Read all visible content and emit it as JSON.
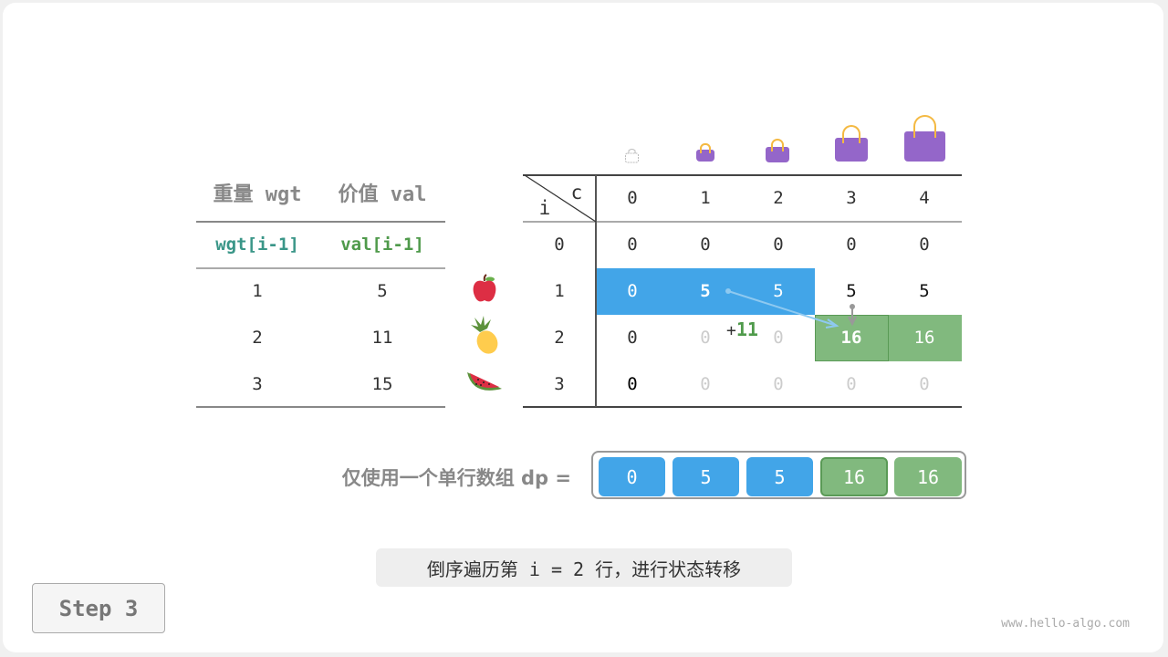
{
  "left_table": {
    "headers": [
      "重量 wgt",
      "价值 val"
    ],
    "subheaders": [
      "wgt[i-1]",
      "val[i-1]"
    ],
    "rows": [
      [
        "1",
        "5"
      ],
      [
        "2",
        "11"
      ],
      [
        "3",
        "15"
      ]
    ],
    "items": [
      "apple-icon",
      "pineapple-icon",
      "watermelon-icon"
    ]
  },
  "dp_table": {
    "corner_i": "i",
    "corner_c": "c",
    "cols": [
      "0",
      "1",
      "2",
      "3",
      "4"
    ],
    "row_labels": [
      "0",
      "1",
      "2",
      "3"
    ],
    "cells": [
      [
        "0",
        "0",
        "0",
        "0",
        "0"
      ],
      [
        "0",
        "5",
        "5",
        "5",
        "5"
      ],
      [
        "0",
        "0",
        "0",
        "16",
        "16"
      ],
      [
        "0",
        "0",
        "0",
        "0",
        "0"
      ]
    ],
    "plus_label": "+11"
  },
  "dp_array": {
    "label": "仅使用一个单行数组 dp =",
    "values": [
      "0",
      "5",
      "5",
      "16",
      "16"
    ]
  },
  "caption": "倒序遍历第 i = 2 行，进行状态转移",
  "step_button": "Step 3",
  "watermark": "www.hello-algo.com",
  "colors": {
    "blue": "#42a5e8",
    "green": "#81b97e",
    "green_dark": "#5a9a56",
    "teal": "#3a9688",
    "val_green": "#4f9a4b",
    "bag": "#9466c9"
  }
}
